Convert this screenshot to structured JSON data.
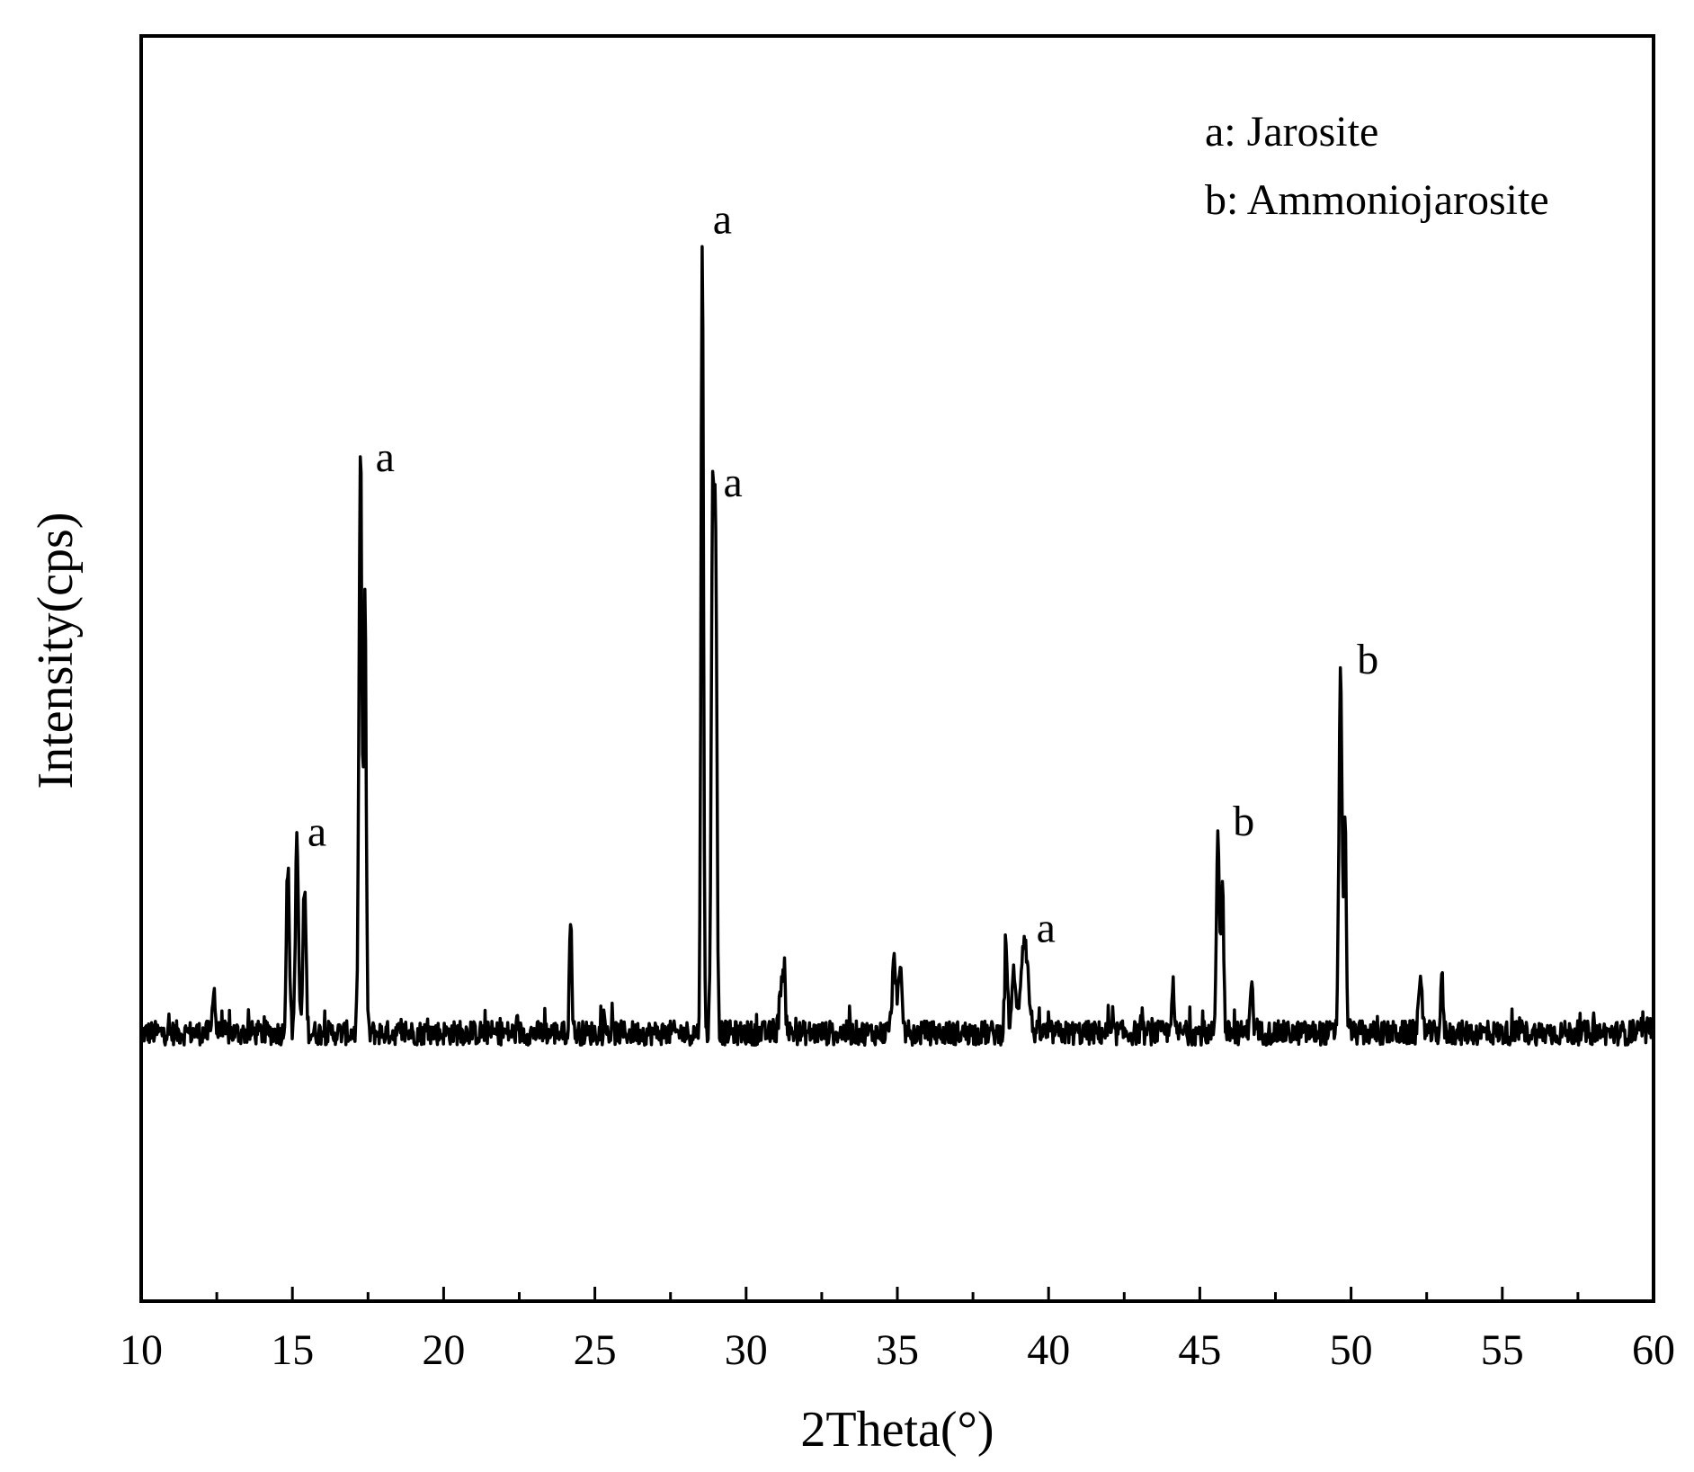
{
  "chart_data": {
    "type": "line",
    "title": "",
    "xlabel": "2Theta(°)",
    "ylabel": "Intensity(cps)",
    "xlim": [
      10,
      60
    ],
    "ylim": [
      -250,
      1000
    ],
    "x_ticks": [
      10,
      15,
      20,
      25,
      30,
      35,
      40,
      45,
      50,
      55,
      60
    ],
    "x_tick_labels": [
      "10",
      "15",
      "20",
      "25",
      "30",
      "35",
      "40",
      "45",
      "50",
      "55",
      "60"
    ],
    "x_minor_step": 2.5,
    "y_ticks_shown": false,
    "grid": false,
    "legend": {
      "position": "top-right",
      "entries": [
        "a: Jarosite",
        "b: Ammoniojarosite"
      ]
    },
    "series": [
      {
        "color": "#000000",
        "background_level": 15,
        "noise_amplitude": 12,
        "peaks": [
          {
            "x": 12.4,
            "height": 50,
            "width": 0.04
          },
          {
            "x": 14.85,
            "height": 165,
            "width": 0.05
          },
          {
            "x": 15.15,
            "height": 190,
            "width": 0.05
          },
          {
            "x": 15.4,
            "height": 145,
            "width": 0.05
          },
          {
            "x": 17.25,
            "height": 560,
            "width": 0.05
          },
          {
            "x": 17.4,
            "height": 430,
            "width": 0.04
          },
          {
            "x": 24.2,
            "height": 110,
            "width": 0.04
          },
          {
            "x": 28.55,
            "height": 795,
            "width": 0.04
          },
          {
            "x": 28.9,
            "height": 535,
            "width": 0.05
          },
          {
            "x": 29.0,
            "height": 420,
            "width": 0.04
          },
          {
            "x": 31.2,
            "height": 60,
            "width": 0.08
          },
          {
            "x": 34.9,
            "height": 70,
            "width": 0.07
          },
          {
            "x": 35.1,
            "height": 55,
            "width": 0.06
          },
          {
            "x": 38.6,
            "height": 80,
            "width": 0.05
          },
          {
            "x": 38.85,
            "height": 65,
            "width": 0.05
          },
          {
            "x": 39.2,
            "height": 95,
            "width": 0.12
          },
          {
            "x": 44.1,
            "height": 50,
            "width": 0.04
          },
          {
            "x": 45.6,
            "height": 200,
            "width": 0.05
          },
          {
            "x": 45.75,
            "height": 150,
            "width": 0.04
          },
          {
            "x": 46.7,
            "height": 50,
            "width": 0.05
          },
          {
            "x": 49.65,
            "height": 360,
            "width": 0.05
          },
          {
            "x": 49.8,
            "height": 220,
            "width": 0.04
          },
          {
            "x": 52.3,
            "height": 45,
            "width": 0.06
          },
          {
            "x": 53.0,
            "height": 55,
            "width": 0.04
          }
        ]
      }
    ],
    "annotations": [
      {
        "text": "a",
        "x": 15.2,
        "y": 200
      },
      {
        "text": "a",
        "x": 17.45,
        "y": 570
      },
      {
        "text": "a",
        "x": 28.6,
        "y": 805
      },
      {
        "text": "a",
        "x": 28.95,
        "y": 545
      },
      {
        "text": "a",
        "x": 39.3,
        "y": 105
      },
      {
        "text": "b",
        "x": 45.8,
        "y": 210
      },
      {
        "text": "b",
        "x": 49.9,
        "y": 370
      }
    ]
  }
}
